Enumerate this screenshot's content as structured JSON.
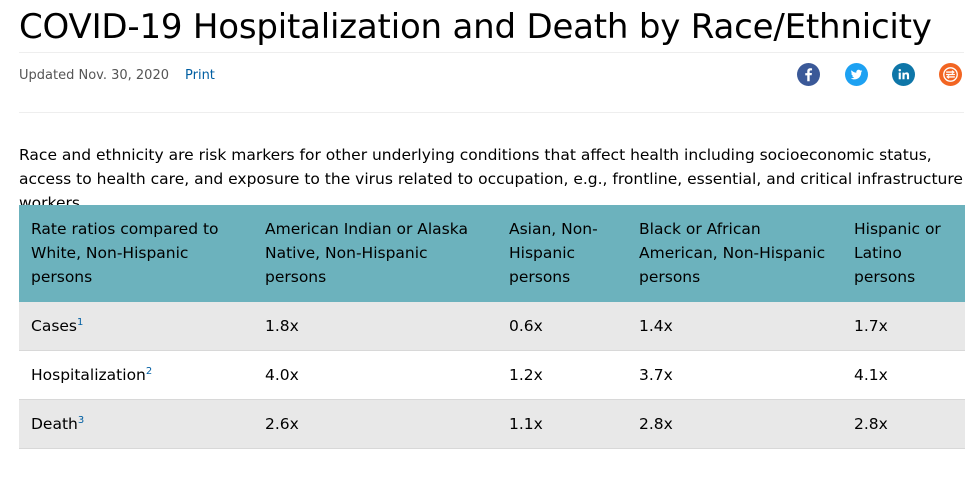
{
  "header": {
    "title": "COVID-19 Hospitalization and Death by Race/Ethnicity",
    "updated": "Updated Nov. 30, 2020",
    "print_label": "Print"
  },
  "social": [
    {
      "icon": "facebook-icon",
      "color": "#3b5998"
    },
    {
      "icon": "twitter-icon",
      "color": "#1da1f2"
    },
    {
      "icon": "linkedin-icon",
      "color": "#0e76a8"
    },
    {
      "icon": "syndicate-icon",
      "color": "#f26522"
    }
  ],
  "intro": "Race and ethnicity are risk markers for other underlying conditions that affect health including socioeconomic status, access to health care, and exposure to the virus related to occupation, e.g., frontline, essential, and critical infrastructure workers.",
  "table": {
    "header_color": "#6cb2bd",
    "columns": [
      "Rate ratios compared to White, Non-Hispanic persons",
      "American Indian or Alaska Native, Non-Hispanic persons",
      "Asian, Non-Hispanic persons",
      "Black or African American, Non-Hispanic persons",
      "Hispanic or Latino persons"
    ],
    "rows": [
      {
        "label": "Cases",
        "footnote": "1",
        "values": [
          "1.8x",
          "0.6x",
          "1.4x",
          "1.7x"
        ]
      },
      {
        "label": "Hospitalization",
        "footnote": "2",
        "values": [
          "4.0x",
          "1.2x",
          "3.7x",
          "4.1x"
        ]
      },
      {
        "label": "Death",
        "footnote": "3",
        "values": [
          "2.6x",
          "1.1x",
          "2.8x",
          "2.8x"
        ]
      }
    ]
  }
}
